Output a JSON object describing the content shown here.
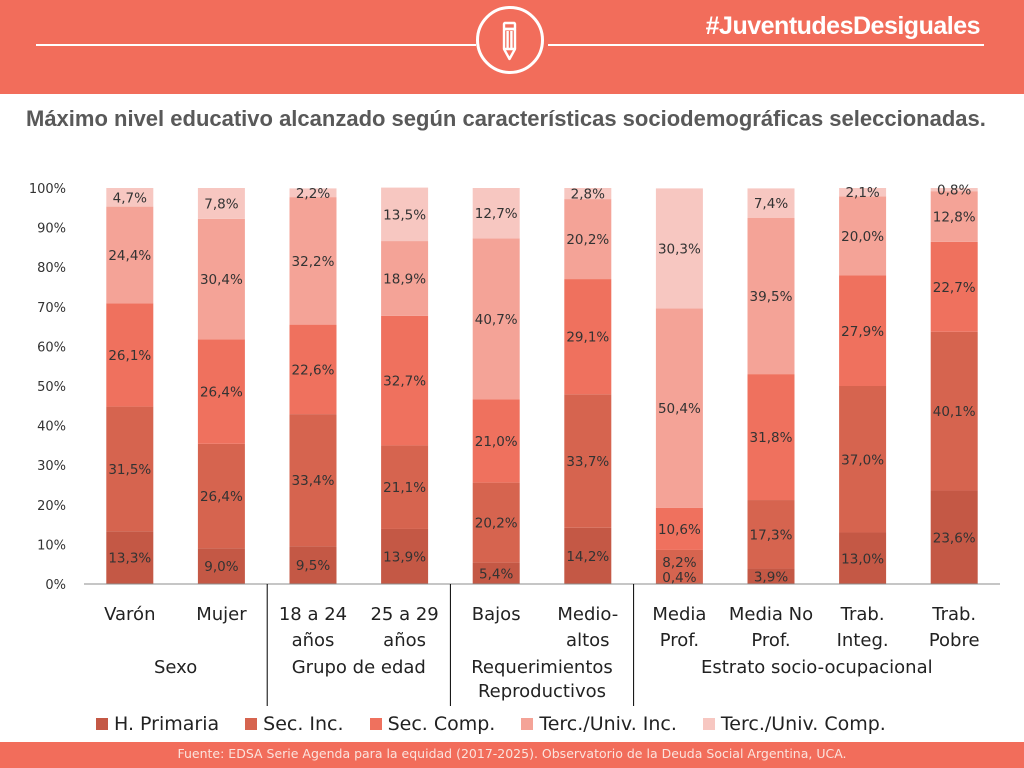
{
  "header": {
    "hashtag": "#JuventudesDesiguales",
    "icon": "pencil-icon",
    "band_color": "#f26d5b"
  },
  "title": "Máximo nivel educativo alcanzado según características sociodemográficas seleccionadas.",
  "footer": {
    "source": "Fuente: EDSA Serie Agenda para la equidad (2017-2025). Observatorio de la Deuda Social Argentina, UCA."
  },
  "chart_data": {
    "type": "bar",
    "stacked": true,
    "percent_stacked": true,
    "ylim": [
      0,
      100
    ],
    "yticks": [
      "0%",
      "10%",
      "20%",
      "30%",
      "40%",
      "50%",
      "60%",
      "70%",
      "80%",
      "90%",
      "100%"
    ],
    "grid": false,
    "legend_position": "bottom",
    "categories": [
      [
        "Varón"
      ],
      [
        "Mujer"
      ],
      [
        "18 a 24",
        "años"
      ],
      [
        "25 a 29",
        "años"
      ],
      [
        "Bajos"
      ],
      [
        "Medio-",
        "altos"
      ],
      [
        "Media",
        "Prof."
      ],
      [
        "Media No",
        "Prof."
      ],
      [
        "Trab.",
        "Integ."
      ],
      [
        "Trab.",
        "Pobre"
      ]
    ],
    "groups": [
      {
        "label": [
          "Sexo"
        ],
        "from": 0,
        "to": 1
      },
      {
        "label": [
          "Grupo de edad"
        ],
        "from": 2,
        "to": 3
      },
      {
        "label": [
          "Requerimientos",
          "Reproductivos"
        ],
        "from": 4,
        "to": 5
      },
      {
        "label": [
          "Estrato socio-ocupacional"
        ],
        "from": 6,
        "to": 9
      }
    ],
    "series": [
      {
        "name": "H. Primaria",
        "color": "#c45845",
        "values": [
          13.3,
          9.0,
          9.5,
          13.9,
          5.4,
          14.2,
          0.4,
          3.9,
          13.0,
          23.6
        ],
        "labels": [
          "13,3%",
          "9,0%",
          "9,5%",
          "13,9%",
          "5,4%",
          "14,2%",
          "0,4%",
          "3,9%",
          "13,0%",
          "23,6%"
        ]
      },
      {
        "name": "Sec. Inc.",
        "color": "#d6644f",
        "values": [
          31.5,
          26.4,
          33.4,
          21.1,
          20.2,
          33.7,
          8.2,
          17.3,
          37.0,
          40.1
        ],
        "labels": [
          "31,5%",
          "26,4%",
          "33,4%",
          "21,1%",
          "20,2%",
          "33,7%",
          "8,2%",
          "17,3%",
          "37,0%",
          "40,1%"
        ]
      },
      {
        "name": "Sec. Comp.",
        "color": "#ef715e",
        "values": [
          26.1,
          26.4,
          22.6,
          32.7,
          21.0,
          29.1,
          10.6,
          31.8,
          27.9,
          22.7
        ],
        "labels": [
          "26,1%",
          "26,4%",
          "22,6%",
          "32,7%",
          "21,0%",
          "29,1%",
          "10,6%",
          "31,8%",
          "27,9%",
          "22,7%"
        ]
      },
      {
        "name": "Terc./Univ. Inc.",
        "color": "#f4a397",
        "values": [
          24.4,
          30.4,
          32.2,
          18.9,
          40.7,
          20.2,
          50.4,
          39.5,
          20.0,
          12.8
        ],
        "labels": [
          "24,4%",
          "30,4%",
          "32,2%",
          "18,9%",
          "40,7%",
          "20,2%",
          "50,4%",
          "39,5%",
          "20,0%",
          "12,8%"
        ]
      },
      {
        "name": "Terc./Univ. Comp.",
        "color": "#f7c7c1",
        "values": [
          4.7,
          7.8,
          2.2,
          13.5,
          12.7,
          2.8,
          30.3,
          7.4,
          2.1,
          0.8
        ],
        "labels": [
          "4,7%",
          "7,8%",
          "2,2%",
          "13,5%",
          "12,7%",
          "2,8%",
          "30,3%",
          "7,4%",
          "2,1%",
          "0,8%"
        ]
      }
    ]
  }
}
